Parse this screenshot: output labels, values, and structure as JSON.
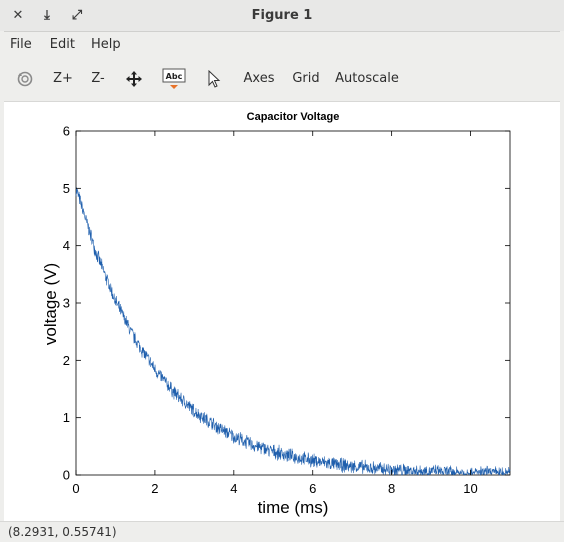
{
  "window": {
    "title": "Figure 1",
    "buttons": {
      "close": "✕",
      "minimize": "⤓",
      "maximize": "⤢"
    }
  },
  "menu": [
    "File",
    "Edit",
    "Help"
  ],
  "toolbar": {
    "rotate_icon": "rotate-icon",
    "zoom_in": "Z+",
    "zoom_out": "Z-",
    "pan_icon": "pan-icon",
    "text_icon_label": "Abc",
    "select_icon": "pointer-icon",
    "axes": "Axes",
    "grid": "Grid",
    "autoscale": "Autoscale"
  },
  "status": {
    "coords": "(8.2931, 0.55741)"
  },
  "colors": {
    "line": "#1f5fad",
    "chrome": "#eeeeec"
  },
  "chart_data": {
    "type": "line",
    "title": "Capacitor Voltage",
    "xlabel": "time (ms)",
    "ylabel": "voltage (V)",
    "xlim": [
      0,
      11
    ],
    "ylim": [
      0,
      6
    ],
    "xticks": [
      0,
      2,
      4,
      6,
      8,
      10
    ],
    "yticks": [
      0,
      1,
      2,
      3,
      4,
      5,
      6
    ],
    "grid": false,
    "series": [
      {
        "x": [
          0,
          0.5,
          1,
          1.5,
          2,
          2.5,
          3,
          3.5,
          4,
          4.5,
          5,
          5.5,
          6,
          6.5,
          7,
          7.5,
          8,
          8.5,
          9,
          9.5,
          10,
          10.5,
          11
        ],
        "y": [
          5.0,
          3.9,
          3.03,
          2.36,
          1.84,
          1.43,
          1.11,
          0.87,
          0.67,
          0.52,
          0.41,
          0.32,
          0.25,
          0.19,
          0.15,
          0.12,
          0.09,
          0.07,
          0.06,
          0.04,
          0.03,
          0.03,
          0.02
        ],
        "noise": 0.12
      }
    ]
  }
}
